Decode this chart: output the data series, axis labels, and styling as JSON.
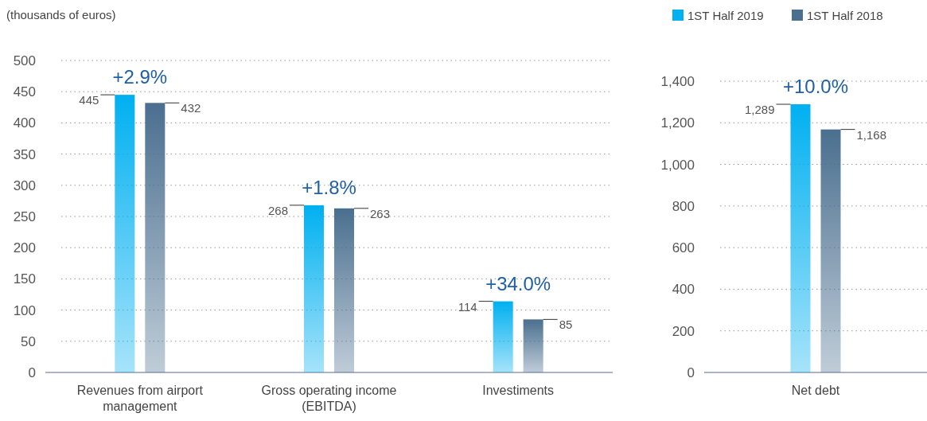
{
  "chart_data": [
    {
      "type": "bar",
      "title": "(thousands of euros)",
      "categories": [
        "Revenues from airport management",
        "Gross operating income (EBITDA)",
        "Investiments"
      ],
      "series": [
        {
          "color": "#00b0f0",
          "values": [
            445,
            268,
            114
          ],
          "value_labels": [
            "445",
            "268",
            "114"
          ]
        },
        {
          "color": "#4a6f8f",
          "values": [
            432,
            263,
            85
          ],
          "value_labels": [
            "432",
            "263",
            "85"
          ]
        }
      ],
      "ylim": [
        0,
        500
      ],
      "yticks": [
        0,
        50,
        100,
        150,
        200,
        250,
        300,
        350,
        400,
        450,
        500
      ],
      "grid": "y",
      "annotations": [
        "+2.9%",
        "+1.8%",
        "+34.0%"
      ]
    },
    {
      "type": "bar",
      "categories": [
        "Net debt"
      ],
      "series": [
        {
          "name": "1ST Half 2019",
          "color": "#00b0f0",
          "values": [
            1289
          ],
          "value_labels": [
            "1,289"
          ]
        },
        {
          "name": "1ST Half 2018",
          "color": "#4a6f8f",
          "values": [
            1168
          ],
          "value_labels": [
            "1,168"
          ]
        }
      ],
      "ylim": [
        0,
        1400
      ],
      "yticks": [
        0,
        200,
        400,
        600,
        800,
        {
          "value": 1000,
          "label": "1,000"
        },
        {
          "value": 1200,
          "label": "1,200"
        },
        {
          "value": 1400,
          "label": "1,400"
        }
      ],
      "grid": "y",
      "legend": "top",
      "annotations": [
        "+10.0%"
      ]
    }
  ]
}
